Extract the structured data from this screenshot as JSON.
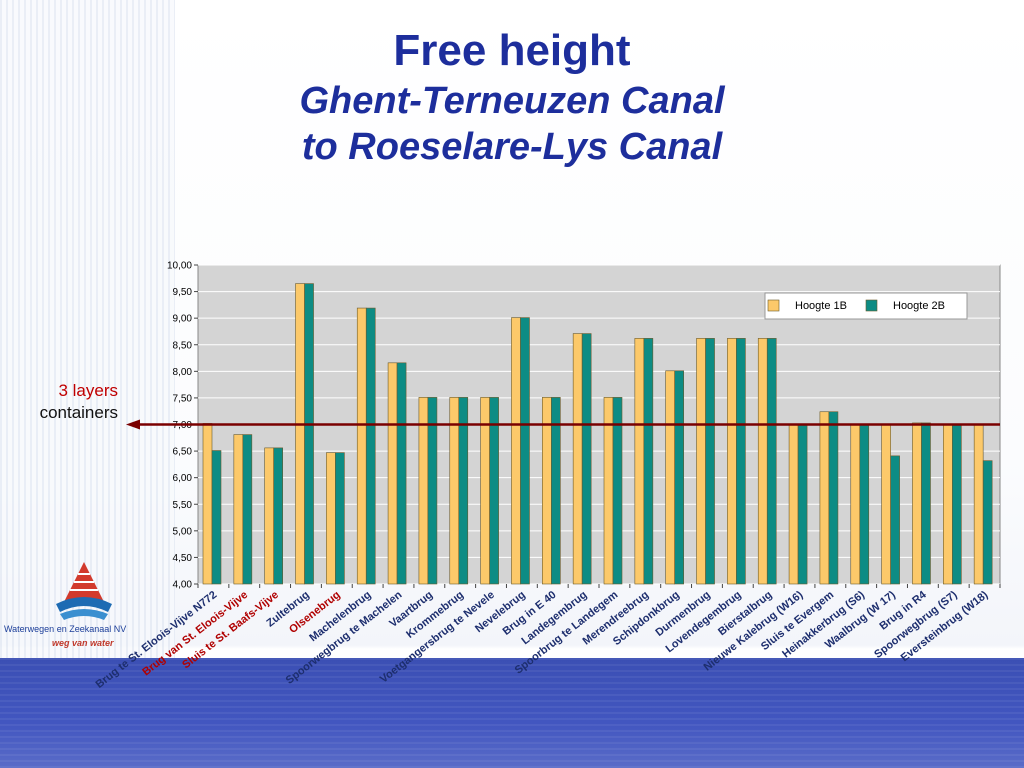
{
  "slide": {
    "title": "Free height",
    "subtitle_line1": "Ghent-Terneuzen Canal",
    "subtitle_line2": "to Roeselare-Lys Canal",
    "side_note_line1": "3 layers",
    "side_note_line2": "containers",
    "logo_name": "Waterwegen en Zeekanaal NV",
    "logo_tagline": "weg van water"
  },
  "colors": {
    "title": "#1d2e9c",
    "series_1b": "#fcc96a",
    "series_2b": "#0d8c84",
    "reference_line": "#7a0000",
    "highlight_label": "#b00000",
    "plot_background": "#d4d4d4"
  },
  "chart_data": {
    "type": "bar",
    "title": "",
    "xlabel": "",
    "ylabel": "",
    "ylim": [
      4.0,
      10.0
    ],
    "yticks": [
      "4,00",
      "4,50",
      "5,00",
      "5,50",
      "6,00",
      "6,50",
      "7,00",
      "7,50",
      "8,00",
      "8,50",
      "9,00",
      "9,50",
      "10,00"
    ],
    "grid": true,
    "legend_position": "top-right",
    "reference_line": 7.0,
    "categories": [
      "Brug te St. Eloois-Vijve N772",
      "Brug van St. Eloois-Vijve",
      "Sluis te St. Baafs-Vijve",
      "Zultebrug",
      "Olsenebrug",
      "Machelenbrug",
      "Spoorwegbrug te Machelen",
      "Vaartbrug",
      "Krommebrug",
      "Voetgangersbrug te Nevele",
      "Nevelebrug",
      "Brug in E 40",
      "Landegembrug",
      "Spoorbrug te Landegem",
      "Merendreebrug",
      "Schipdonkbrug",
      "Durmenbrug",
      "Lovendegembrug",
      "Bierstalbrug",
      "Nieuwe Kalebrug (W16)",
      "Sluis te Evergem",
      "Heinakkerbrug (S6)",
      "Waalbrug (W 17)",
      "Brug in R4",
      "Spoorwegbrug (S7)",
      "Eversteinbrug (W18)"
    ],
    "highlighted_categories": [
      "Brug van St. Eloois-Vijve",
      "Sluis te St. Baafs-Vijve",
      "Olsenebrug"
    ],
    "series": [
      {
        "name": "Hoogte 1B",
        "values": [
          7.02,
          6.81,
          6.56,
          9.65,
          6.47,
          9.19,
          8.16,
          7.51,
          7.51,
          7.51,
          9.01,
          7.51,
          8.71,
          7.51,
          8.62,
          8.01,
          8.62,
          8.62,
          8.62,
          7.01,
          7.24,
          7.01,
          7.01,
          7.03,
          7.01,
          7.01
        ]
      },
      {
        "name": "Hoogte 2B",
        "values": [
          6.51,
          6.81,
          6.56,
          9.65,
          6.47,
          9.19,
          8.16,
          7.51,
          7.51,
          7.51,
          9.01,
          7.51,
          8.71,
          7.51,
          8.62,
          8.01,
          8.62,
          8.62,
          8.62,
          7.01,
          7.24,
          7.01,
          6.41,
          7.03,
          7.01,
          6.32
        ]
      }
    ]
  }
}
